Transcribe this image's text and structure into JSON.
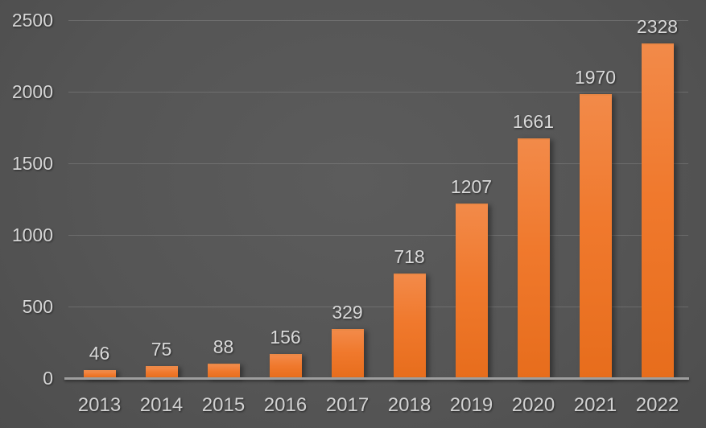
{
  "chart_data": {
    "type": "bar",
    "categories": [
      "2013",
      "2014",
      "2015",
      "2016",
      "2017",
      "2018",
      "2019",
      "2020",
      "2021",
      "2022"
    ],
    "values": [
      46,
      75,
      88,
      156,
      329,
      718,
      1207,
      1661,
      1970,
      2328
    ],
    "title": "",
    "xlabel": "",
    "ylabel": "",
    "ylim": [
      0,
      2500
    ],
    "yticks": [
      0,
      500,
      1000,
      1500,
      2000,
      2500
    ],
    "grid": true,
    "legend": false,
    "data_labels": true
  },
  "colors": {
    "bar_gradient_top": "#F28A49",
    "bar_gradient_mid": "#F0792D",
    "bar_gradient_bottom": "#E76D1C",
    "background_center": "#5c5c5c",
    "background_edge": "#2a2a2a",
    "gridline": "rgba(255,255,255,0.14)",
    "axis_line": "#9e9e9e",
    "label_text": "#d9d9d9"
  }
}
